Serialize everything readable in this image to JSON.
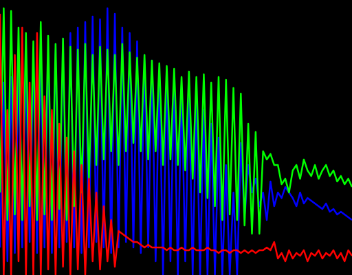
{
  "chart_data": {
    "type": "line",
    "ylim": [
      0,
      100
    ],
    "background": "#000000",
    "series": [
      {
        "color": "#0000ff",
        "values": [
          10,
          70,
          5,
          72,
          8,
          75,
          10,
          76,
          12,
          78,
          8,
          80,
          10,
          82,
          8,
          84,
          10,
          86,
          12,
          88,
          10,
          90,
          8,
          92,
          10,
          94,
          12,
          93,
          10,
          97,
          8,
          95,
          10,
          90,
          12,
          88,
          10,
          85,
          8,
          80,
          10,
          78,
          5,
          76,
          0,
          74,
          5,
          72,
          0,
          70,
          5,
          68,
          0,
          66,
          0,
          60,
          0,
          55,
          0,
          50,
          0,
          40,
          0,
          30,
          0,
          48,
          20,
          40,
          30,
          35,
          25,
          30,
          20,
          34,
          25,
          30,
          28,
          32,
          30,
          28,
          25,
          30,
          26,
          28,
          27,
          26,
          25,
          24,
          26,
          23,
          24,
          22,
          23,
          22,
          21,
          20
        ]
      },
      {
        "color": "#00ff00",
        "values": [
          30,
          97,
          20,
          96,
          22,
          90,
          20,
          88,
          25,
          85,
          20,
          92,
          22,
          87,
          20,
          84,
          24,
          86,
          20,
          83,
          25,
          82,
          30,
          84,
          35,
          80,
          40,
          83,
          42,
          82,
          45,
          80,
          40,
          84,
          45,
          81,
          48,
          79,
          45,
          80,
          42,
          78,
          45,
          77,
          40,
          76,
          42,
          75,
          40,
          72,
          38,
          74,
          35,
          72,
          30,
          73,
          28,
          70,
          25,
          72,
          20,
          71,
          22,
          68,
          20,
          66,
          18,
          55,
          15,
          52,
          15,
          45,
          42,
          44,
          40,
          40,
          33,
          35,
          30,
          38,
          40,
          35,
          42,
          38,
          36,
          40,
          35,
          38,
          40,
          36,
          38,
          34,
          36,
          33,
          35,
          32
        ]
      },
      {
        "color": "#ff0000",
        "values": [
          95,
          0,
          60,
          0,
          80,
          5,
          90,
          0,
          70,
          0,
          88,
          0,
          65,
          2,
          60,
          0,
          55,
          3,
          50,
          0,
          45,
          2,
          40,
          0,
          35,
          5,
          30,
          2,
          25,
          5,
          20,
          3,
          16,
          15,
          14,
          13,
          12,
          12,
          11,
          10,
          11,
          10,
          10,
          10,
          10,
          9,
          10,
          9,
          9,
          10,
          9,
          9,
          10,
          9,
          9,
          9,
          10,
          9,
          9,
          8,
          9,
          9,
          8,
          9,
          9,
          8,
          9,
          8,
          9,
          8,
          9,
          9,
          10,
          9,
          12,
          6,
          8,
          5,
          9,
          6,
          8,
          7,
          9,
          5,
          8,
          7,
          9,
          6,
          8,
          7,
          9,
          6,
          8,
          5,
          9,
          7
        ]
      }
    ]
  }
}
